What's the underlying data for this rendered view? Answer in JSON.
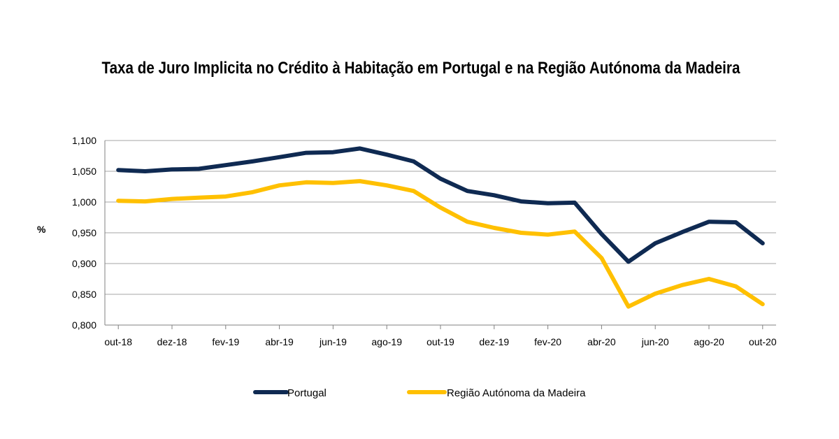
{
  "chart_data": {
    "type": "line",
    "title": "Taxa de Juro Implicita no Crédito à Habitação em Portugal e na Região Autónoma da Madeira",
    "ylabel": "%",
    "xlabel": "",
    "ylim": [
      0.8,
      1.1
    ],
    "yticks": [
      "0,800",
      "0,850",
      "0,900",
      "0,950",
      "1,000",
      "1,050",
      "1,100"
    ],
    "x": [
      "out-18",
      "nov-18",
      "dez-18",
      "jan-19",
      "fev-19",
      "mar-19",
      "abr-19",
      "mai-19",
      "jun-19",
      "jul-19",
      "ago-19",
      "set-19",
      "out-19",
      "nov-19",
      "dez-19",
      "jan-20",
      "fev-20",
      "mar-20",
      "abr-20",
      "mai-20",
      "jun-20",
      "jul-20",
      "ago-20",
      "set-20",
      "out-20"
    ],
    "xtick_labels": [
      "out-18",
      "dez-18",
      "fev-19",
      "abr-19",
      "jun-19",
      "ago-19",
      "out-19",
      "dez-19",
      "fev-20",
      "abr-20",
      "jun-20",
      "ago-20",
      "out-20"
    ],
    "series": [
      {
        "name": "Portugal",
        "color": "#0f2a52",
        "values": [
          1.052,
          1.05,
          1.053,
          1.054,
          1.06,
          1.066,
          1.073,
          1.08,
          1.081,
          1.087,
          1.077,
          1.066,
          1.038,
          1.018,
          1.011,
          1.001,
          0.998,
          0.999,
          0.948,
          0.903,
          0.933,
          0.951,
          0.968,
          0.967,
          0.933
        ]
      },
      {
        "name": "Região Autónoma da Madeira",
        "color": "#ffc000",
        "values": [
          1.002,
          1.001,
          1.005,
          1.007,
          1.009,
          1.016,
          1.027,
          1.032,
          1.031,
          1.034,
          1.027,
          1.018,
          0.991,
          0.968,
          0.958,
          0.95,
          0.947,
          0.952,
          0.909,
          0.83,
          0.851,
          0.865,
          0.875,
          0.863,
          0.834
        ]
      }
    ],
    "grid": true,
    "legend_position": "bottom"
  }
}
